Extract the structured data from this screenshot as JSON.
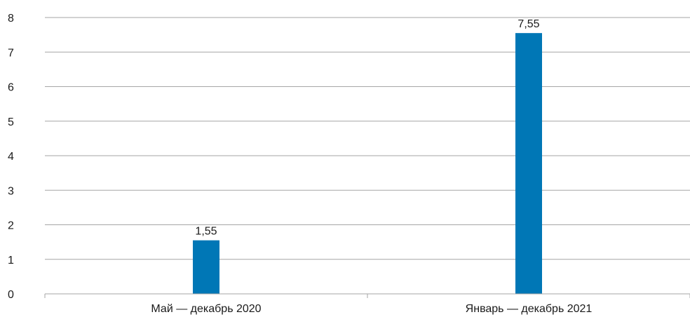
{
  "chart_data": {
    "type": "bar",
    "categories": [
      "Май — декабрь 2020",
      "Январь — декабрь 2021"
    ],
    "values": [
      1.55,
      7.55
    ],
    "data_labels": [
      "1,55",
      "7,55"
    ],
    "y_ticks": [
      "0",
      "1",
      "2",
      "3",
      "4",
      "5",
      "6",
      "7",
      "8"
    ],
    "ylim": [
      0,
      8
    ],
    "grid": true,
    "legend": "none",
    "bar_color": "#0077b6"
  }
}
